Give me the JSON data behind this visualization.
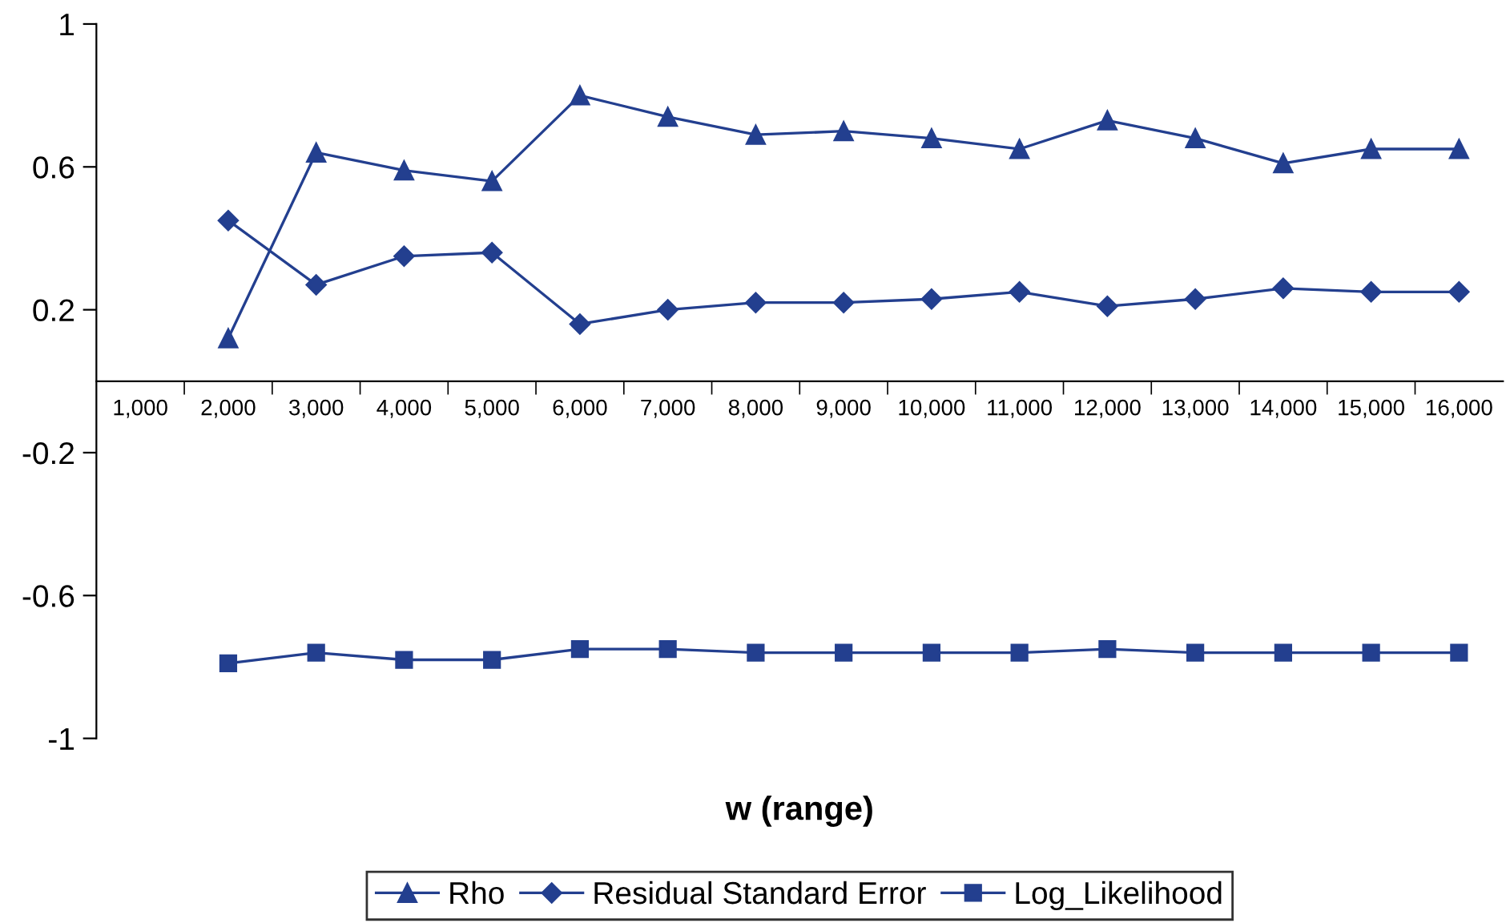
{
  "chart_data": {
    "type": "line",
    "xlabel": "w (range)",
    "categories": [
      "1,000",
      "2,000",
      "3,000",
      "4,000",
      "5,000",
      "6,000",
      "7,000",
      "8,000",
      "9,000",
      "10,000",
      "11,000",
      "12,000",
      "13,000",
      "14,000",
      "15,000",
      "16,000"
    ],
    "series": [
      {
        "name": "Rho",
        "color": "#233f8f",
        "marker": "triangle",
        "values": [
          null,
          0.12,
          0.64,
          0.59,
          0.56,
          0.8,
          0.74,
          0.69,
          0.7,
          0.68,
          0.65,
          0.73,
          0.68,
          0.61,
          0.65,
          0.65
        ]
      },
      {
        "name": "Residual Standard Error",
        "color": "#233f8f",
        "marker": "diamond",
        "values": [
          null,
          0.45,
          0.27,
          0.35,
          0.36,
          0.16,
          0.2,
          0.22,
          0.22,
          0.23,
          0.25,
          0.21,
          0.23,
          0.26,
          0.25,
          0.25
        ]
      },
      {
        "name": "Log_Likelihood",
        "color": "#233f8f",
        "marker": "square",
        "values": [
          null,
          -0.79,
          -0.76,
          -0.78,
          -0.78,
          -0.75,
          -0.75,
          -0.76,
          -0.76,
          -0.76,
          -0.76,
          -0.75,
          -0.76,
          -0.76,
          -0.76,
          -0.76
        ]
      }
    ],
    "ylim": [
      -1,
      1
    ],
    "yticks": [
      -1,
      -0.6,
      -0.2,
      0.2,
      0.6,
      1
    ],
    "grid": false,
    "legend": "bottom",
    "line_style": "solid"
  }
}
